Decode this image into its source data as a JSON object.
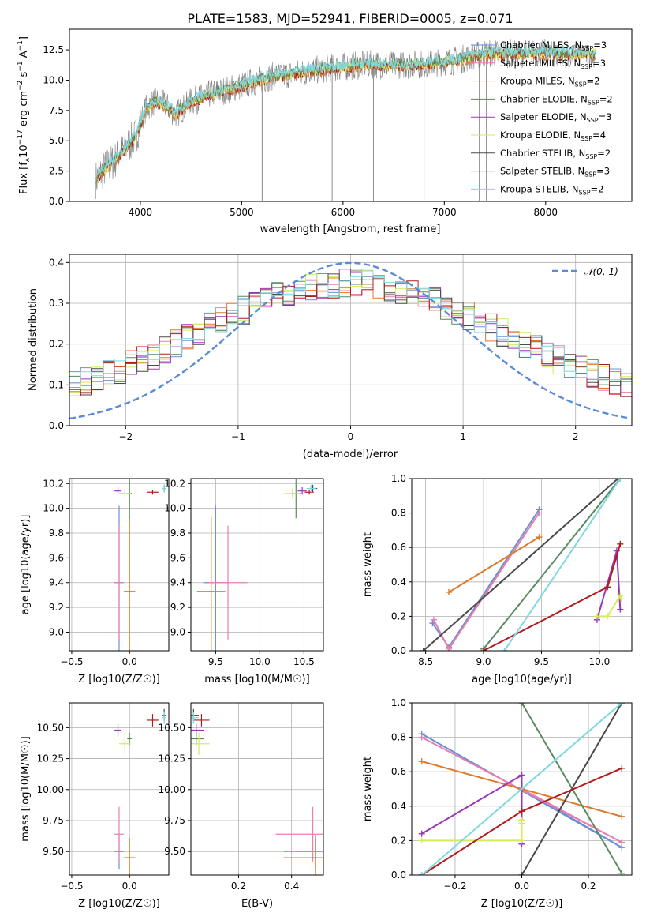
{
  "colors": {
    "chabrier_miles": "#6a8fd8",
    "salpeter_miles": "#e87fb0",
    "kroupa_miles": "#e07a2a",
    "chabrier_elodie": "#5a8a5e",
    "salpeter_elodie": "#9b36b8",
    "kroupa_elodie": "#d6ea5a",
    "chabrier_stelib": "#4a4a4a",
    "salpeter_stelib": "#b01c1c",
    "kroupa_stelib": "#7fd8e0",
    "data": "#808080",
    "grid": "#b0b0b0"
  },
  "chart_data": [
    {
      "id": "spectrum",
      "type": "line",
      "title": "PLATE=1583, MJD=52941, FIBERID=0005, z=0.071",
      "xlabel": "wavelength [Angstrom, rest frame]",
      "ylabel": "Flux [f_λ 10^-17 erg cm^-2 s^-1 A^-1]",
      "xlim": [
        3300,
        8850
      ],
      "ylim": [
        0,
        14.2
      ],
      "xticks": [
        "4000",
        "5000",
        "6000",
        "7000",
        "8000"
      ],
      "yticks": [
        "0.0",
        "2.5",
        "5.0",
        "7.5",
        "10.0",
        "12.5"
      ],
      "grid": false,
      "legend_position": "right",
      "legend": [
        {
          "name": "Chabrier MILES, N_SSP=3",
          "color": "chabrier_miles"
        },
        {
          "name": "Salpeter MILES, N_SSP=3",
          "color": "salpeter_miles"
        },
        {
          "name": "Kroupa MILES, N_SSP=2",
          "color": "kroupa_miles"
        },
        {
          "name": "Chabrier ELODIE, N_SSP=2",
          "color": "chabrier_elodie"
        },
        {
          "name": "Salpeter ELODIE, N_SSP=3",
          "color": "salpeter_elodie"
        },
        {
          "name": "Kroupa ELODIE, N_SSP=4",
          "color": "kroupa_elodie"
        },
        {
          "name": "Chabrier STELIB, N_SSP=2",
          "color": "chabrier_stelib"
        },
        {
          "name": "Salpeter STELIB, N_SSP=3",
          "color": "salpeter_stelib"
        },
        {
          "name": "Kroupa STELIB, N_SSP=2",
          "color": "kroupa_stelib"
        }
      ],
      "continuum": {
        "x": [
          3560,
          3650,
          3750,
          3850,
          3950,
          4050,
          4150,
          4250,
          4350,
          4500,
          4700,
          4900,
          5100,
          5300,
          5500,
          5700,
          5900,
          6100,
          6300,
          6500,
          6700,
          6900,
          7100,
          7300,
          7400
        ],
        "y": [
          1.8,
          2.7,
          3.4,
          4.4,
          5.3,
          7.6,
          8.3,
          7.9,
          7.2,
          8.2,
          8.9,
          9.3,
          9.8,
          10.3,
          10.5,
          10.8,
          11.0,
          11.2,
          11.3,
          11.2,
          11.3,
          11.4,
          11.6,
          12.0,
          12.2
        ]
      }
    },
    {
      "id": "residuals",
      "type": "line",
      "xlabel": "(data-model)/error",
      "ylabel": "Normed distribution",
      "xlim": [
        -2.5,
        2.5
      ],
      "ylim": [
        0,
        0.42
      ],
      "xticks": [
        "−2",
        "−1",
        "0",
        "1",
        "2"
      ],
      "yticks": [
        "0.0",
        "0.1",
        "0.2",
        "0.3",
        "0.4"
      ],
      "grid": true,
      "legend_position": "top-right",
      "legend": [
        {
          "name": "𝒩(0, 1)",
          "color": "#5b8ad6"
        }
      ],
      "gaussian": {
        "mu": 0,
        "sigma": 1
      }
    },
    {
      "id": "age_vs_Z",
      "type": "scatter",
      "xlabel": "Z [log10(Z/Z☉)]",
      "ylabel": "age  [log10(age/yr)]",
      "xlim": [
        -0.52,
        0.34
      ],
      "ylim": [
        8.85,
        10.24
      ],
      "xticks": [
        -0.5,
        0.0
      ],
      "yticks": [
        9.0,
        9.2,
        9.4,
        9.6,
        9.8,
        10.0,
        10.2
      ],
      "grid": true
    },
    {
      "id": "age_vs_mass",
      "type": "scatter",
      "xlabel": "mass [log10(M/M☉)]",
      "xlim": [
        9.22,
        10.72
      ],
      "ylim": [
        8.85,
        10.24
      ],
      "xticks": [
        9.5,
        10.0,
        10.5
      ],
      "yticks": [
        9.0,
        9.2,
        9.4,
        9.6,
        9.8,
        10.0,
        10.2
      ],
      "grid": true
    },
    {
      "id": "weight_vs_age",
      "type": "line",
      "xlabel": "age  [log10(age/yr)]",
      "ylabel": "mass weight",
      "xlim": [
        8.38,
        10.28
      ],
      "ylim": [
        0,
        1
      ],
      "xticks": [
        8.5,
        9.0,
        9.5,
        10.0
      ],
      "yticks": [
        0.0,
        0.2,
        0.4,
        0.6,
        0.8,
        1.0
      ],
      "grid": true
    },
    {
      "id": "mass_vs_Z",
      "type": "scatter",
      "xlabel": "Z [log10(Z/Z☉)]",
      "ylabel": "mass [log10(M/M☉)]",
      "xlim": [
        -0.52,
        0.34
      ],
      "ylim": [
        9.31,
        10.7
      ],
      "xticks": [
        -0.5,
        0.0
      ],
      "yticks": [
        9.5,
        9.75,
        10.0,
        10.25,
        10.5
      ],
      "grid": true
    },
    {
      "id": "mass_vs_ebv",
      "type": "scatter",
      "xlabel": "E(B-V)",
      "xlim": [
        0.02,
        0.52
      ],
      "ylim": [
        9.31,
        10.7
      ],
      "xticks": [
        0.2,
        0.4
      ],
      "yticks": [
        9.5,
        9.75,
        10.0,
        10.25,
        10.5
      ],
      "grid": true
    },
    {
      "id": "weight_vs_Z",
      "type": "line",
      "xlabel": "Z [log10(Z/Z☉)]",
      "ylabel": "mass weight",
      "xlim": [
        -0.33,
        0.33
      ],
      "ylim": [
        0,
        1
      ],
      "xticks": [
        -0.2,
        0.0,
        0.2
      ],
      "yticks": [
        0.0,
        0.2,
        0.4,
        0.6,
        0.8,
        1.0
      ],
      "grid": true
    }
  ],
  "models": [
    {
      "key": "chabrier_miles",
      "Z": [
        -0.09,
        0.04
      ],
      "age": [
        9.4,
        0.62
      ],
      "mass": [
        9.5,
        0.14
      ],
      "ebv": [
        0.49,
        0.12
      ],
      "age_pts": [
        [
          8.56,
          0.16
        ],
        [
          8.7,
          0.02
        ],
        [
          9.48,
          0.82
        ]
      ],
      "z_pts": [
        [
          -0.3,
          0.82
        ],
        [
          0.3,
          0.16
        ],
        [
          0.0,
          0.5
        ]
      ]
    },
    {
      "key": "salpeter_miles",
      "Z": [
        -0.09,
        0.04
      ],
      "age": [
        9.4,
        0.46
      ],
      "mass": [
        9.64,
        0.22
      ],
      "ebv": [
        0.48,
        0.14
      ],
      "age_pts": [
        [
          8.57,
          0.18
        ],
        [
          8.7,
          0.01
        ],
        [
          9.48,
          0.8
        ]
      ],
      "z_pts": [
        [
          -0.3,
          0.8
        ],
        [
          0.3,
          0.19
        ],
        [
          0.0,
          0.5
        ]
      ]
    },
    {
      "key": "kroupa_miles",
      "Z": [
        0.0,
        0.05
      ],
      "age": [
        9.33,
        0.6
      ],
      "mass": [
        9.45,
        0.16
      ],
      "ebv": [
        0.49,
        0.12
      ],
      "age_pts": [
        [
          8.7,
          0.34
        ],
        [
          9.48,
          0.66
        ]
      ],
      "z_pts": [
        [
          -0.3,
          0.66
        ],
        [
          0.3,
          0.34
        ]
      ]
    },
    {
      "key": "chabrier_elodie",
      "Z": [
        0.0,
        0.02
      ],
      "age": [
        10.12,
        0.2
      ],
      "mass": [
        10.41,
        0.05
      ],
      "ebv": [
        0.04,
        0.03
      ],
      "age_pts": [
        [
          9.0,
          0.01
        ],
        [
          10.18,
          1.0
        ]
      ],
      "z_pts": [
        [
          0.0,
          1.0
        ],
        [
          0.3,
          0.01
        ]
      ]
    },
    {
      "key": "salpeter_elodie",
      "Z": [
        -0.1,
        0.03
      ],
      "age": [
        10.14,
        0.03
      ],
      "mass": [
        10.48,
        0.05
      ],
      "ebv": [
        0.04,
        0.03
      ],
      "age_pts": [
        [
          9.98,
          0.18
        ],
        [
          10.15,
          0.58
        ],
        [
          10.18,
          0.24
        ]
      ],
      "z_pts": [
        [
          -0.3,
          0.24
        ],
        [
          0.0,
          0.58
        ],
        [
          0.0,
          0.18
        ]
      ]
    },
    {
      "key": "kroupa_elodie",
      "Z": [
        -0.04,
        0.05
      ],
      "age": [
        10.12,
        0.04
      ],
      "mass": [
        10.37,
        0.09
      ],
      "ebv": [
        0.05,
        0.04
      ],
      "age_pts": [
        [
          9.98,
          0.2
        ],
        [
          10.07,
          0.2
        ],
        [
          10.18,
          0.32
        ],
        [
          10.19,
          0.3
        ]
      ],
      "z_pts": [
        [
          -0.3,
          0.2
        ],
        [
          0.0,
          0.2
        ],
        [
          0.0,
          0.3
        ],
        [
          0.0,
          0.32
        ]
      ]
    },
    {
      "key": "chabrier_stelib",
      "Z": [
        0.3,
        0.02
      ],
      "age": [
        10.16,
        0.03
      ],
      "mass": [
        10.6,
        0.05
      ],
      "ebv": [
        0.03,
        0.02
      ],
      "age_pts": [
        [
          8.48,
          0.0
        ],
        [
          10.16,
          1.0
        ]
      ],
      "z_pts": [
        [
          0.0,
          0.0
        ],
        [
          0.3,
          1.0
        ]
      ]
    },
    {
      "key": "salpeter_stelib",
      "Z": [
        0.2,
        0.05
      ],
      "age": [
        10.13,
        0.02
      ],
      "mass": [
        10.56,
        0.05
      ],
      "ebv": [
        0.06,
        0.03
      ],
      "age_pts": [
        [
          9.0,
          0.0
        ],
        [
          10.07,
          0.37
        ],
        [
          10.18,
          0.62
        ]
      ],
      "z_pts": [
        [
          -0.3,
          0.0
        ],
        [
          0.0,
          0.37
        ],
        [
          0.3,
          0.62
        ]
      ]
    },
    {
      "key": "kroupa_stelib",
      "Z": [
        0.3,
        0.02
      ],
      "age": [
        10.16,
        0.03
      ],
      "mass": [
        10.58,
        0.05
      ],
      "ebv": [
        0.03,
        0.02
      ],
      "age_pts": [
        [
          9.18,
          0.0
        ],
        [
          10.18,
          1.0
        ]
      ],
      "z_pts": [
        [
          -0.3,
          0.0
        ],
        [
          0.3,
          1.0
        ]
      ]
    }
  ]
}
